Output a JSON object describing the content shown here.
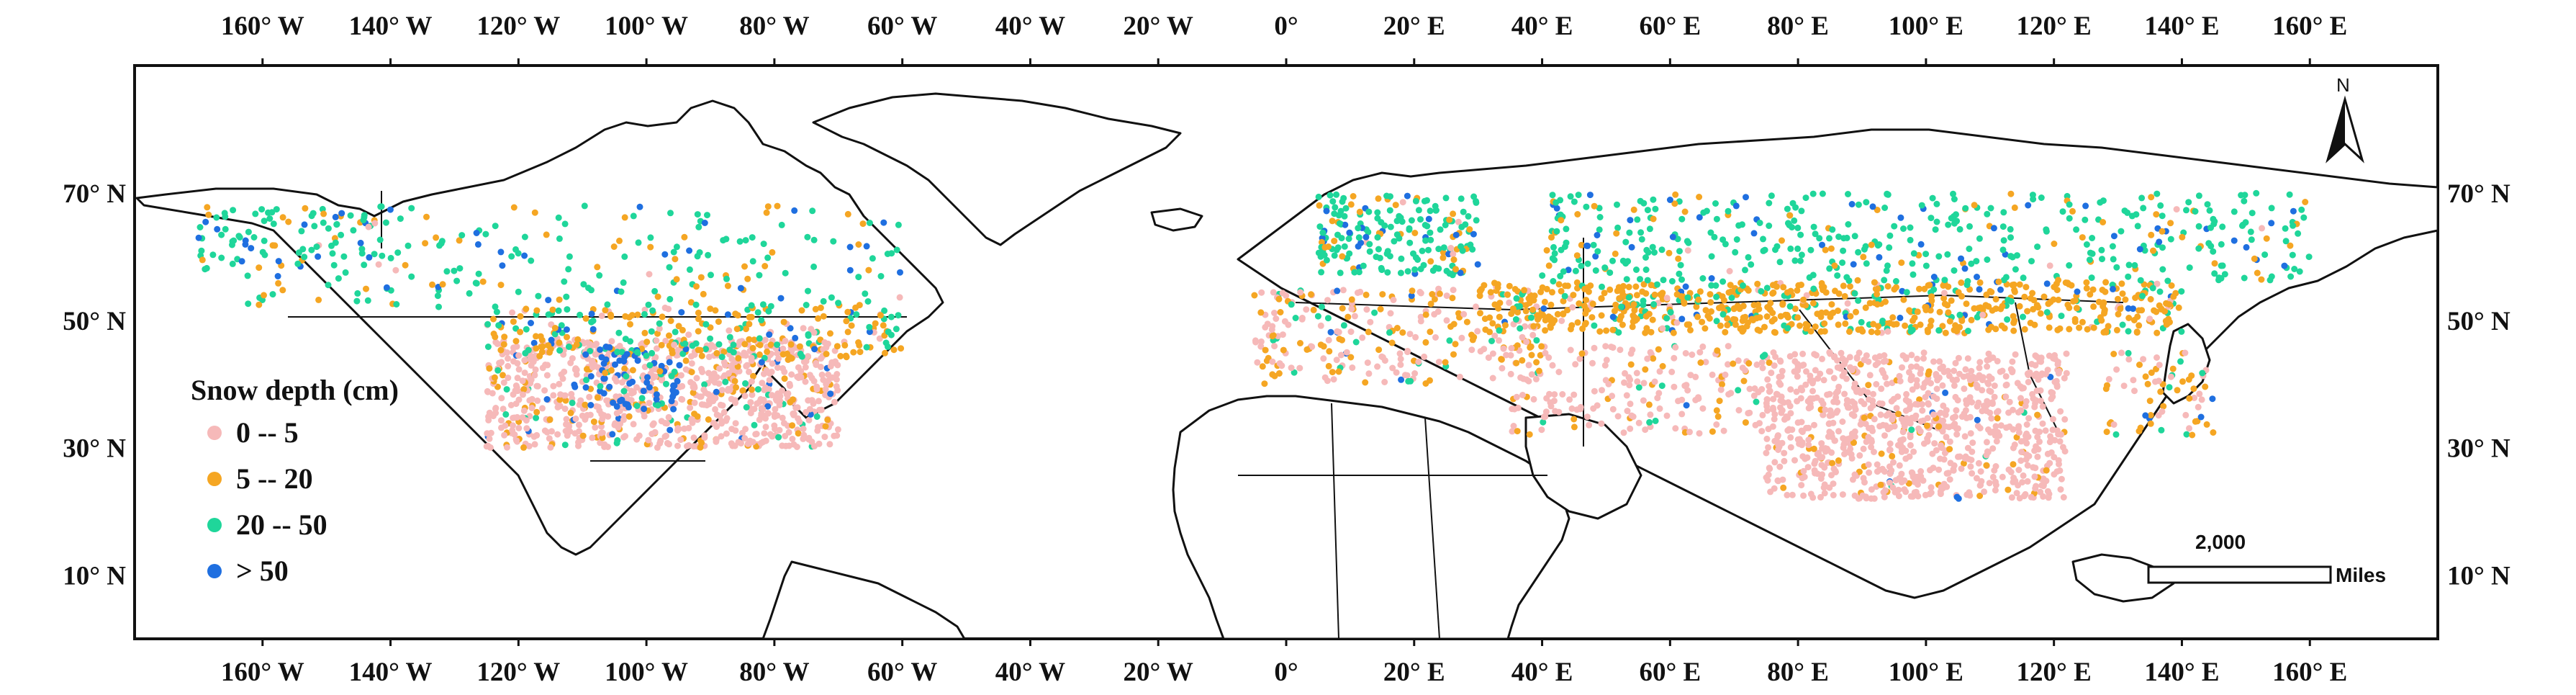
{
  "map": {
    "lon_ticks": [
      "160° W",
      "140° W",
      "120° W",
      "100° W",
      "80° W",
      "60° W",
      "40° W",
      "20° W",
      "0°",
      "20° E",
      "40° E",
      "60° E",
      "80° E",
      "100° E",
      "120° E",
      "140° E",
      "160° E"
    ],
    "lat_ticks": [
      "70° N",
      "50° N",
      "30° N",
      "10° N"
    ],
    "lon_values": [
      -160,
      -140,
      -120,
      -100,
      -80,
      -60,
      -40,
      -20,
      0,
      20,
      40,
      60,
      80,
      100,
      120,
      140,
      160
    ],
    "lat_values": [
      70,
      50,
      30,
      10
    ],
    "lon_range": [
      -180,
      180
    ],
    "lat_range": [
      0,
      90
    ]
  },
  "legend": {
    "title": "Snow depth (cm)",
    "items": [
      {
        "label": "0 -- 5",
        "color": "#f6b9b9"
      },
      {
        "label": "5 -- 20",
        "color": "#f5a623"
      },
      {
        "label": "20 -- 50",
        "color": "#1fd69a"
      },
      {
        "label": "> 50",
        "color": "#1f6fe0"
      }
    ]
  },
  "scale_bar": {
    "value": "2,000",
    "unit": "Miles"
  },
  "north_arrow": {
    "label": "N",
    "icon": "north-arrow-icon"
  }
}
